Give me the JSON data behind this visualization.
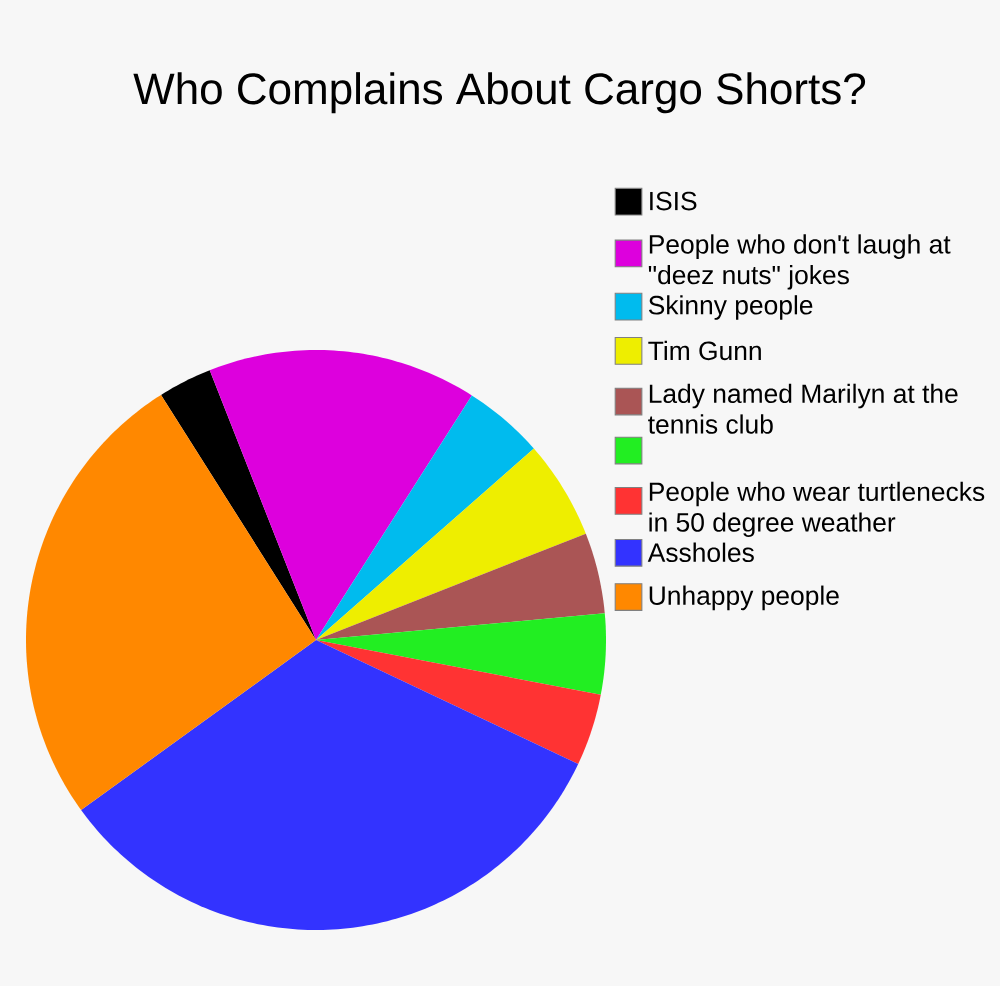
{
  "chart_data": {
    "type": "pie",
    "title": "Who Complains About Cargo Shorts?",
    "categories": [
      "ISIS",
      "People who don't laugh at \"deez nuts\" jokes",
      "Skinny people",
      "Tim Gunn",
      "Lady named Marilyn at the tennis club",
      null,
      "People who wear turtlenecks in 50 degree weather",
      "Assholes",
      "Unhappy people"
    ],
    "values": [
      3,
      15,
      4.5,
      5.5,
      4.5,
      4.5,
      4,
      33,
      26
    ],
    "colors": [
      "#000000",
      "#dd00dd",
      "#00bbee",
      "#eeee00",
      "#aa5555",
      "#22ee22",
      "#ff3333",
      "#3333ff",
      "#ff8800"
    ],
    "legend": "top right"
  }
}
